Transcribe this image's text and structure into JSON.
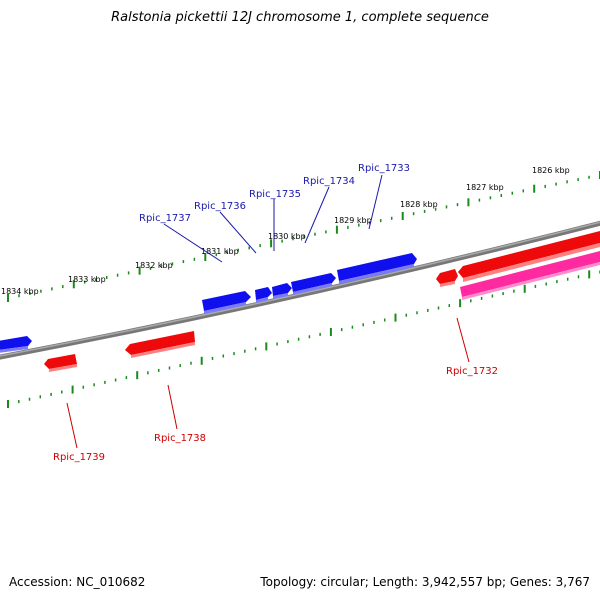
{
  "title": "Ralstonia pickettii 12J chromosome 1, complete sequence",
  "footer": {
    "accession": "Accession: NC_010682",
    "summary": "Topology: circular; Length: 3,942,557 bp; Genes: 3,767"
  },
  "colors": {
    "forward_gene": "#1010ee",
    "reverse_gene": "#ee0a0a",
    "reverse_gene_alt": "#ff2aa0",
    "backbone": "#888888",
    "tick": "#1a8a1a",
    "forward_label": "#1a1aaa",
    "reverse_label": "#cc0000"
  },
  "ruler_labels": [
    "1826 kbp",
    "1827 kbp",
    "1828 kbp",
    "1829 kbp",
    "1830 kbp",
    "1831 kbp",
    "1832 kbp",
    "1833 kbp",
    "1834 kbp"
  ],
  "forward_genes": [
    "Rpic_1733",
    "Rpic_1734",
    "Rpic_1735",
    "Rpic_1736",
    "Rpic_1737"
  ],
  "reverse_genes": [
    "Rpic_1732",
    "Rpic_1738",
    "Rpic_1739"
  ]
}
